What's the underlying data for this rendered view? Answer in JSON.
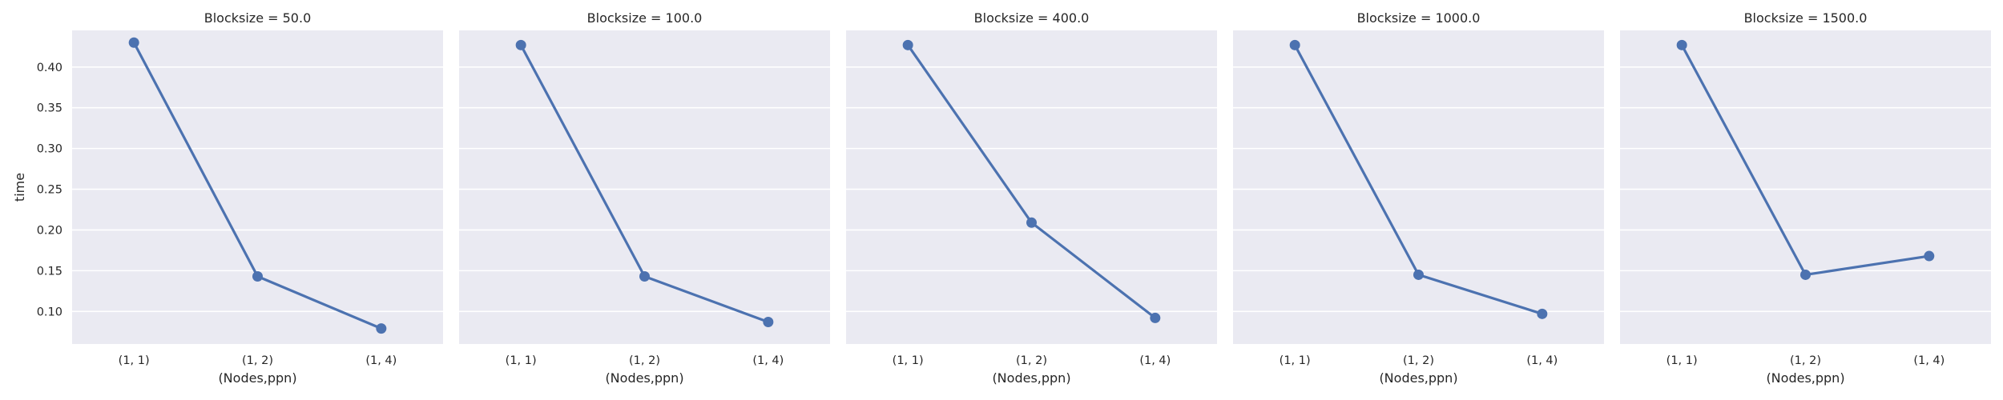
{
  "chart_data": {
    "type": "line",
    "ylabel": "time",
    "xlabel": "(Nodes,ppn)",
    "categories": [
      "(1, 1)",
      "(1, 2)",
      "(1, 4)"
    ],
    "ylim": [
      0.06,
      0.445
    ],
    "yticks": [
      "0.10",
      "0.15",
      "0.20",
      "0.25",
      "0.30",
      "0.35",
      "0.40"
    ],
    "grid": true,
    "series_color": "#4c72b0",
    "background_color": "#eaeaf2",
    "panels": [
      {
        "title": "Blocksize = 50.0",
        "values": [
          0.43,
          0.143,
          0.079
        ]
      },
      {
        "title": "Blocksize = 100.0",
        "values": [
          0.427,
          0.143,
          0.087
        ]
      },
      {
        "title": "Blocksize = 400.0",
        "values": [
          0.427,
          0.209,
          0.092
        ]
      },
      {
        "title": "Blocksize = 1000.0",
        "values": [
          0.427,
          0.145,
          0.097
        ]
      },
      {
        "title": "Blocksize = 1500.0",
        "values": [
          0.427,
          0.145,
          0.168
        ]
      }
    ]
  }
}
